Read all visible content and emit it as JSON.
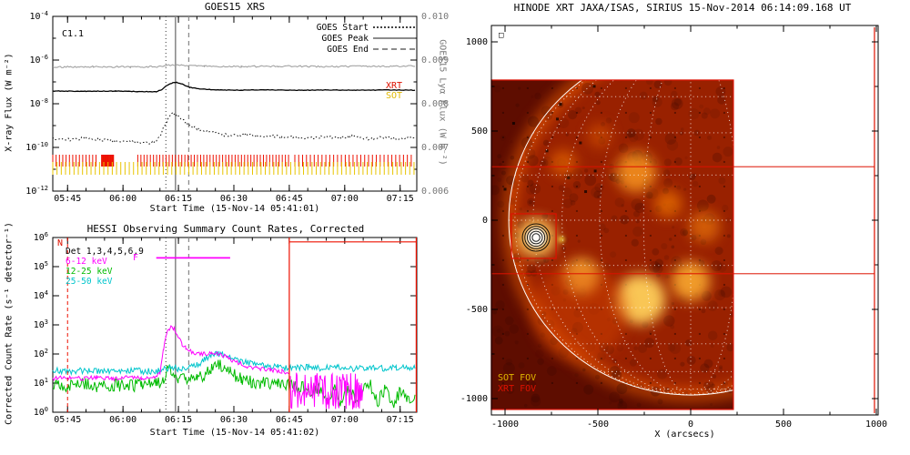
{
  "chart_data": [
    {
      "type": "line",
      "id": "goes",
      "title": "GOES15 XRS",
      "xlabel": "Start Time (15-Nov-14 05:41:01)",
      "ylabel_left": "X-ray Flux (W m⁻²)",
      "ylabel_right": "GOES15 Lyα Flux (W m⁻²)",
      "flare_class": "C1.1",
      "legend": [
        {
          "label": "GOES Start",
          "style": "dotted",
          "color": "#444444"
        },
        {
          "label": "GOES Peak",
          "style": "solid",
          "color": "#8c8c8c"
        },
        {
          "label": "GOES End",
          "style": "dashed",
          "color": "#8c8c8c"
        }
      ],
      "axis": {
        "time_units": "minutes after 05:40 UT",
        "tmin": 1,
        "tmax": 99.5,
        "minor_step": 5,
        "xticks": [
          {
            "t": 5,
            "label": "05:45"
          },
          {
            "t": 20,
            "label": "06:00"
          },
          {
            "t": 35,
            "label": "06:15"
          },
          {
            "t": 50,
            "label": "06:30"
          },
          {
            "t": 65,
            "label": "06:45"
          },
          {
            "t": 80,
            "label": "07:00"
          },
          {
            "t": 95,
            "label": "07:15"
          }
        ],
        "log_top": -4,
        "log_bot": -12,
        "ytick_exps": [
          -4,
          -6,
          -8,
          -10,
          -12
        ],
        "right_top": 0.01,
        "right_bot": 0.006,
        "right_ticks": [
          {
            "v": 0.01,
            "label": "0.010"
          },
          {
            "v": 0.009,
            "label": "0.009"
          },
          {
            "v": 0.008,
            "label": "0.008"
          },
          {
            "v": 0.007,
            "label": "0.007"
          },
          {
            "v": 0.006,
            "label": "0.006"
          }
        ]
      },
      "events": {
        "start_t": 31.6,
        "peak_t": 34.2,
        "end_t": 37.8
      },
      "series": [
        {
          "name": "goes15-lyman-alpha",
          "axis": "right",
          "color": "#9a9a9a",
          "width": 1,
          "noise": 1.8e-05,
          "dt": 0.4,
          "seed": 11,
          "points": [
            [
              1,
              0.00884
            ],
            [
              12,
              0.00885
            ],
            [
              22,
              0.00884
            ],
            [
              30,
              0.00885
            ],
            [
              33,
              0.00889
            ],
            [
              36,
              0.00888
            ],
            [
              42,
              0.00886
            ],
            [
              52,
              0.00885
            ],
            [
              62,
              0.00886
            ],
            [
              75,
              0.00885
            ],
            [
              88,
              0.00886
            ],
            [
              99,
              0.00886
            ]
          ]
        },
        {
          "name": "goes-xrs-long",
          "axis": "log",
          "color": "#000000",
          "width": 1.3,
          "noise": 0.012,
          "dt": 0.4,
          "seed": 22,
          "points": [
            [
              1,
              -7.42
            ],
            [
              10,
              -7.43
            ],
            [
              18,
              -7.42
            ],
            [
              24,
              -7.44
            ],
            [
              29,
              -7.45
            ],
            [
              30.5,
              -7.35
            ],
            [
              32,
              -7.15
            ],
            [
              33.5,
              -7.04
            ],
            [
              34.5,
              -7.02
            ],
            [
              36,
              -7.1
            ],
            [
              38,
              -7.25
            ],
            [
              41,
              -7.33
            ],
            [
              46,
              -7.37
            ],
            [
              52,
              -7.38
            ],
            [
              58,
              -7.36
            ],
            [
              66,
              -7.38
            ],
            [
              75,
              -7.37
            ],
            [
              85,
              -7.38
            ],
            [
              92,
              -7.37
            ],
            [
              99,
              -7.38
            ]
          ]
        },
        {
          "name": "goes-xrs-short",
          "axis": "log",
          "color": "#111111",
          "width": 1,
          "dash": "1.5,2.5",
          "noise": 0.07,
          "dt": 0.35,
          "seed": 33,
          "points": [
            [
              1,
              -9.6
            ],
            [
              6,
              -9.65
            ],
            [
              10,
              -9.55
            ],
            [
              14,
              -9.65
            ],
            [
              18,
              -9.7
            ],
            [
              23,
              -9.75
            ],
            [
              28,
              -9.8
            ],
            [
              30,
              -9.5
            ],
            [
              31.5,
              -8.9
            ],
            [
              33,
              -8.5
            ],
            [
              34,
              -8.45
            ],
            [
              35,
              -8.6
            ],
            [
              36.5,
              -8.8
            ],
            [
              38,
              -9.0
            ],
            [
              40,
              -9.15
            ],
            [
              43,
              -9.3
            ],
            [
              46,
              -9.4
            ],
            [
              49,
              -9.45
            ],
            [
              53,
              -9.4
            ],
            [
              57,
              -9.5
            ],
            [
              60,
              -9.45
            ],
            [
              63,
              -9.55
            ],
            [
              66,
              -9.5
            ],
            [
              70,
              -9.6
            ],
            [
              74,
              -9.5
            ],
            [
              78,
              -9.58
            ],
            [
              82,
              -9.5
            ],
            [
              86,
              -9.6
            ],
            [
              90,
              -9.52
            ],
            [
              94,
              -9.6
            ],
            [
              99,
              -9.55
            ]
          ]
        }
      ],
      "campaigns": [
        {
          "label": "XRT",
          "color": "#ee1100",
          "segments": [
            [
              1,
              13.5,
              0.9
            ],
            [
              14.2,
              17.6,
              0.18
            ],
            [
              24,
              65,
              0.85
            ],
            [
              66.5,
              99,
              1.05
            ]
          ]
        },
        {
          "label": "SOT",
          "color": "#e8c400",
          "segments": [
            [
              1,
              99,
              1.15
            ]
          ]
        }
      ]
    },
    {
      "type": "line",
      "id": "hessi",
      "title": "HESSI Observing Summary Count Rates, Corrected",
      "xlabel": "Start Time (15-Nov-14 05:41:02)",
      "ylabel": "Corrected Count Rate (s⁻¹ detector⁻¹)",
      "legend": [
        {
          "label": "Det 1,3,4,5,6,9",
          "color": "#000000"
        },
        {
          "label": "6-12 keV",
          "color": "#ff00ff"
        },
        {
          "label": "12-25 keV",
          "color": "#00bb00"
        },
        {
          "label": "25-50 keV",
          "color": "#00c5cc"
        }
      ],
      "axis": {
        "tmin": 1,
        "tmax": 99.5,
        "minor_step": 5,
        "xticks": [
          {
            "t": 5,
            "label": "05:45"
          },
          {
            "t": 20,
            "label": "06:00"
          },
          {
            "t": 35,
            "label": "06:15"
          },
          {
            "t": 50,
            "label": "06:30"
          },
          {
            "t": 65,
            "label": "06:45"
          },
          {
            "t": 80,
            "label": "07:00"
          },
          {
            "t": 95,
            "label": "07:15"
          }
        ],
        "log_top": 6,
        "log_bot": 0,
        "ytick_exps": [
          0,
          1,
          2,
          3,
          4,
          5,
          6
        ]
      },
      "events": {
        "start_t": 31.6,
        "peak_t": 34.2,
        "end_t": 37.8
      },
      "flags": {
        "night_label": "N",
        "night_color": "#ee1100",
        "night_line_t": 5,
        "box_start_t": 65,
        "box_top_log": 5.85,
        "flare_label": "F",
        "flare_color": "#ff00ff",
        "flare_bar": {
          "t0": 29,
          "t1": 49,
          "log": 5.3
        }
      },
      "series": [
        {
          "name": "hessi-12-25kev",
          "color": "#00bb00",
          "width": 1,
          "noise": 0.22,
          "dt": 0.3,
          "seed": 44,
          "clamp_min": 0,
          "points": [
            [
              1,
              0.95
            ],
            [
              5,
              0.9
            ],
            [
              9,
              1.0
            ],
            [
              13,
              0.9
            ],
            [
              17,
              0.95
            ],
            [
              21,
              0.9
            ],
            [
              25,
              0.95
            ],
            [
              29,
              0.95
            ],
            [
              31,
              1.1
            ],
            [
              32,
              1.45
            ],
            [
              33,
              1.5
            ],
            [
              34,
              1.35
            ],
            [
              35,
              1.2
            ],
            [
              37,
              1.1
            ],
            [
              40,
              1.12
            ],
            [
              42,
              1.3
            ],
            [
              44,
              1.55
            ],
            [
              46,
              1.6
            ],
            [
              47.5,
              1.5
            ],
            [
              49,
              1.35
            ],
            [
              52,
              1.15
            ],
            [
              55,
              1.05
            ],
            [
              58,
              1.0
            ],
            [
              62,
              0.95
            ],
            [
              66,
              0.9
            ],
            [
              69,
              0.85
            ],
            [
              71,
              0.55
            ],
            [
              73,
              0.9
            ],
            [
              75,
              0.4
            ],
            [
              77,
              0.85
            ],
            [
              79,
              0.3
            ],
            [
              81,
              0.8
            ],
            [
              83,
              0.45
            ],
            [
              85,
              0.75
            ],
            [
              87,
              0.9
            ],
            [
              89,
              0.4
            ],
            [
              91,
              0.8
            ],
            [
              93,
              0.3
            ],
            [
              95,
              0.7
            ],
            [
              97,
              0.4
            ],
            [
              99,
              0.6
            ]
          ]
        },
        {
          "name": "hessi-25-50kev",
          "color": "#00c5cc",
          "width": 1,
          "noise": 0.11,
          "dt": 0.3,
          "seed": 55,
          "clamp_min": 0,
          "points": [
            [
              1,
              1.45
            ],
            [
              6,
              1.4
            ],
            [
              11,
              1.45
            ],
            [
              16,
              1.4
            ],
            [
              21,
              1.45
            ],
            [
              26,
              1.4
            ],
            [
              30,
              1.42
            ],
            [
              33,
              1.55
            ],
            [
              35,
              1.5
            ],
            [
              38,
              1.52
            ],
            [
              40,
              1.62
            ],
            [
              42,
              1.8
            ],
            [
              44,
              1.95
            ],
            [
              46,
              2.0
            ],
            [
              48,
              1.95
            ],
            [
              50,
              1.85
            ],
            [
              52,
              1.75
            ],
            [
              55,
              1.65
            ],
            [
              58,
              1.6
            ],
            [
              62,
              1.55
            ],
            [
              66,
              1.5
            ],
            [
              70,
              1.55
            ],
            [
              74,
              1.5
            ],
            [
              78,
              1.55
            ],
            [
              82,
              1.5
            ],
            [
              86,
              1.55
            ],
            [
              90,
              1.5
            ],
            [
              94,
              1.55
            ],
            [
              99,
              1.5
            ]
          ]
        },
        {
          "name": "hessi-6-12kev",
          "color": "#ff00ff",
          "width": 1,
          "noise": 0.07,
          "dt": 0.3,
          "seed": 66,
          "points": [
            [
              1,
              1.15
            ],
            [
              5,
              1.2
            ],
            [
              9,
              1.15
            ],
            [
              13,
              1.2
            ],
            [
              17,
              1.15
            ],
            [
              21,
              1.2
            ],
            [
              25,
              1.17
            ],
            [
              28,
              1.15
            ],
            [
              30,
              1.35
            ],
            [
              31,
              2.2
            ],
            [
              32,
              2.75
            ],
            [
              33,
              2.9
            ],
            [
              34,
              2.85
            ],
            [
              35,
              2.6
            ],
            [
              36,
              2.35
            ],
            [
              37,
              2.2
            ],
            [
              38,
              2.1
            ],
            [
              40,
              2.0
            ],
            [
              42,
              2.0
            ],
            [
              44,
              2.05
            ],
            [
              46,
              2.0
            ],
            [
              48,
              1.9
            ],
            [
              50,
              1.75
            ],
            [
              53,
              1.6
            ],
            [
              56,
              1.5
            ],
            [
              60,
              1.45
            ],
            [
              63,
              1.4
            ],
            [
              65,
              1.32
            ]
          ]
        },
        {
          "name": "hessi-6-12kev-dropout",
          "color": "#ff00ff",
          "width": 1,
          "noise": 0.65,
          "dt": 0.18,
          "seed": 77,
          "clamp_min": 0,
          "clamp_max": 1.45,
          "points": [
            [
              65.3,
              0.7
            ],
            [
              70,
              0.75
            ],
            [
              75,
              0.7
            ],
            [
              80,
              0.72
            ],
            [
              85,
              0.7
            ]
          ]
        }
      ]
    },
    {
      "type": "heatmap",
      "id": "xrt",
      "title": "HINODE XRT JAXA/ISAS, SIRIUS 15-Nov-2014 06:14:09.168 UT",
      "xlabel": "X (arcsecs)",
      "frame_marker": "□",
      "axis": {
        "xticks": [
          -1000,
          -500,
          0,
          500,
          1000
        ],
        "yticks": [
          1000,
          500,
          0,
          -500,
          -1000
        ],
        "minor_step": 250
      },
      "image_extent_arcsec": {
        "x0": -1074,
        "x1": 230,
        "y0": -1061,
        "y1": 786
      },
      "limb_radius_arcsec": 980,
      "grid_step_deg": 15,
      "colors": {
        "base": "#5e0d00",
        "disk": "#992100",
        "limb_glow": "#ff6a00",
        "fov": "#dd1100",
        "sot_label": "#e0b800"
      },
      "labels": {
        "sot_fov": "SOT FOV",
        "xrt_fov": "XRT FOV"
      },
      "flare": {
        "x": -833,
        "y": -97,
        "contours": 5
      },
      "bright_regions": [
        {
          "x": -294,
          "y": 270,
          "r": 110,
          "c": "#ff9d20",
          "o": 0.8
        },
        {
          "x": -122,
          "y": 92,
          "r": 75,
          "c": "#ff8400",
          "o": 0.6
        },
        {
          "x": -588,
          "y": -316,
          "r": 95,
          "c": "#ffc040",
          "o": 0.9
        },
        {
          "x": -270,
          "y": -444,
          "r": 135,
          "c": "#ffcf5a",
          "o": 0.95
        },
        {
          "x": 0,
          "y": -342,
          "r": 105,
          "c": "#ffb030",
          "o": 0.85
        },
        {
          "x": 74,
          "y": -36,
          "r": 85,
          "c": "#ff8c10",
          "o": 0.55
        },
        {
          "x": -686,
          "y": 321,
          "r": 70,
          "c": "#ff7a00",
          "o": 0.55
        },
        {
          "x": -490,
          "y": 474,
          "r": 65,
          "c": "#e65f00",
          "o": 0.5
        },
        {
          "x": -600,
          "y": -520,
          "r": 260,
          "c": "#d84400",
          "o": 0.45
        },
        {
          "x": -696,
          "y": -107,
          "r": 16,
          "c": "#ffee40",
          "o": 0.95
        }
      ],
      "fovs": {
        "xrt_box": {
          "x0": -1074,
          "x1": 230,
          "y0": -1061,
          "y1": 786
        },
        "sot_box": {
          "x0": -966,
          "x1": -725,
          "y0": -214,
          "y1": 36
        },
        "wide_box": {
          "x0": -1074,
          "x1": 990,
          "y0": -300,
          "y1": 300
        },
        "right_line_x": 990
      }
    }
  ]
}
